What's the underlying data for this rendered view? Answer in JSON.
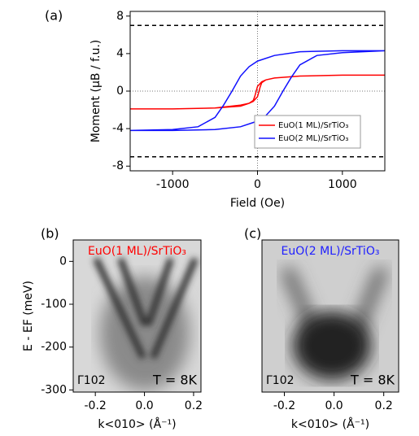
{
  "chart_data": [
    {
      "type": "line",
      "panel_label": "(a)",
      "x_label": "Field (Oe)",
      "y_label": "Moment (μB / f.u.)",
      "xlim": [
        -1500,
        1500
      ],
      "ylim": [
        -8.5,
        8.5
      ],
      "xticks": [
        -1000,
        0,
        1000
      ],
      "yticks": [
        -8,
        -4,
        0,
        4,
        8
      ],
      "reference_lines": [
        7,
        -7
      ],
      "legend": "lower right",
      "series": [
        {
          "name": "EuO(1 ML)/SrTiO₃",
          "color": "#ff0000",
          "x": [
            1500,
            1000,
            500,
            200,
            100,
            50,
            0,
            -30,
            -50,
            -100,
            -200,
            -500,
            -1000,
            -1500,
            -1000,
            -500,
            -200,
            -100,
            -50,
            0,
            30,
            50,
            100,
            200,
            500,
            1000,
            1500
          ],
          "values": [
            1.7,
            1.7,
            1.6,
            1.4,
            1.2,
            1.0,
            0.5,
            -0.5,
            -1.0,
            -1.3,
            -1.5,
            -1.8,
            -1.9,
            -1.9,
            -1.9,
            -1.8,
            -1.6,
            -1.3,
            -1.1,
            -0.6,
            0.4,
            0.9,
            1.2,
            1.4,
            1.6,
            1.7,
            1.7
          ]
        },
        {
          "name": "EuO(2 ML)/SrTiO₃",
          "color": "#1010ff",
          "x": [
            1500,
            1000,
            500,
            200,
            0,
            -100,
            -200,
            -300,
            -400,
            -500,
            -700,
            -1000,
            -1500,
            -1000,
            -500,
            -200,
            0,
            100,
            200,
            300,
            400,
            500,
            700,
            1000,
            1500
          ],
          "values": [
            4.3,
            4.3,
            4.2,
            3.8,
            3.2,
            2.6,
            1.6,
            0,
            -1.5,
            -2.8,
            -3.8,
            -4.1,
            -4.2,
            -4.2,
            -4.1,
            -3.8,
            -3.2,
            -2.6,
            -1.6,
            0,
            1.5,
            2.8,
            3.8,
            4.1,
            4.3
          ]
        }
      ]
    },
    {
      "type": "image",
      "panel_label": "(b)",
      "annotation": "EuO(1 ML)/SrTiO₃",
      "annotation_color": "#ff0000",
      "point_label": "Γ102",
      "temperature": "T = 8K",
      "x_label": "k<010> (Å⁻¹)",
      "y_label": "E - EF (meV)",
      "xlim": [
        -0.29,
        0.23
      ],
      "ylim": [
        -305,
        50
      ],
      "xticks": [
        -0.2,
        {
          "value": 0,
          "label": "0.0"
        },
        0.2
      ],
      "yticks": [
        0,
        -100,
        -200,
        -300
      ]
    },
    {
      "type": "image",
      "panel_label": "(c)",
      "annotation": "EuO(2 ML)/SrTiO₃",
      "annotation_color": "#2020ff",
      "point_label": "Γ102",
      "temperature": "T = 8K",
      "x_label": "k<010> (Å⁻¹)",
      "xlim": [
        -0.29,
        0.26
      ],
      "ylim": [
        -305,
        50
      ],
      "xticks": [
        -0.2,
        {
          "value": 0,
          "label": "0.0"
        },
        0.2
      ]
    }
  ]
}
